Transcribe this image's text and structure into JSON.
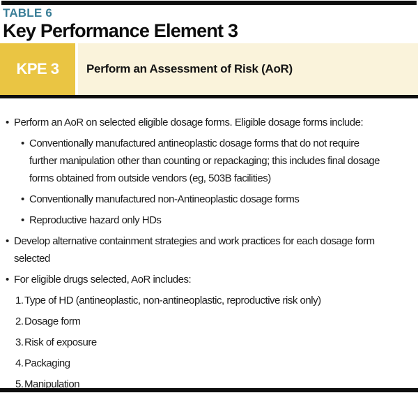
{
  "header": {
    "table_label": "TABLE 6",
    "title": "Key Performance Element 3"
  },
  "banner": {
    "badge": "KPE 3",
    "title": "Perform an Assessment of Risk (AoR)"
  },
  "colors": {
    "teal": "#3a7e97",
    "gold": "#eac543",
    "cream": "#faf3db",
    "bar": "#0e0e0e",
    "ink": "#1c1c1c"
  },
  "body": {
    "items": [
      {
        "level": 1,
        "marker": "•",
        "text": "Perform an AoR on selected eligible dosage forms. Eligible dosage forms include:"
      },
      {
        "level": 2,
        "marker": "•",
        "text": "Conventionally manufactured antineoplastic dosage forms that do not require\nfurther manipulation other than counting or repackaging; this includes final dosage\nforms obtained from outside vendors (eg, 503B facilities)"
      },
      {
        "level": 2,
        "marker": "•",
        "text": "Conventionally manufactured non-Antineoplastic dosage forms"
      },
      {
        "level": 2,
        "marker": "•",
        "text": "Reproductive hazard only HDs"
      },
      {
        "level": 1,
        "marker": "•",
        "text": "Develop alternative containment strategies and work practices for each dosage form\nselected"
      },
      {
        "level": 1,
        "marker": "•",
        "text": "For eligible drugs selected, AoR includes:"
      },
      {
        "level": 3,
        "marker": "1.",
        "text": "Type of HD (antineoplastic, non-antineoplastic, reproductive risk only)"
      },
      {
        "level": 3,
        "marker": "2.",
        "text": "Dosage form"
      },
      {
        "level": 3,
        "marker": "3.",
        "text": "Risk of exposure"
      },
      {
        "level": 3,
        "marker": "4.",
        "text": "Packaging"
      },
      {
        "level": 3,
        "marker": "5.",
        "text": "Manipulation"
      }
    ]
  }
}
